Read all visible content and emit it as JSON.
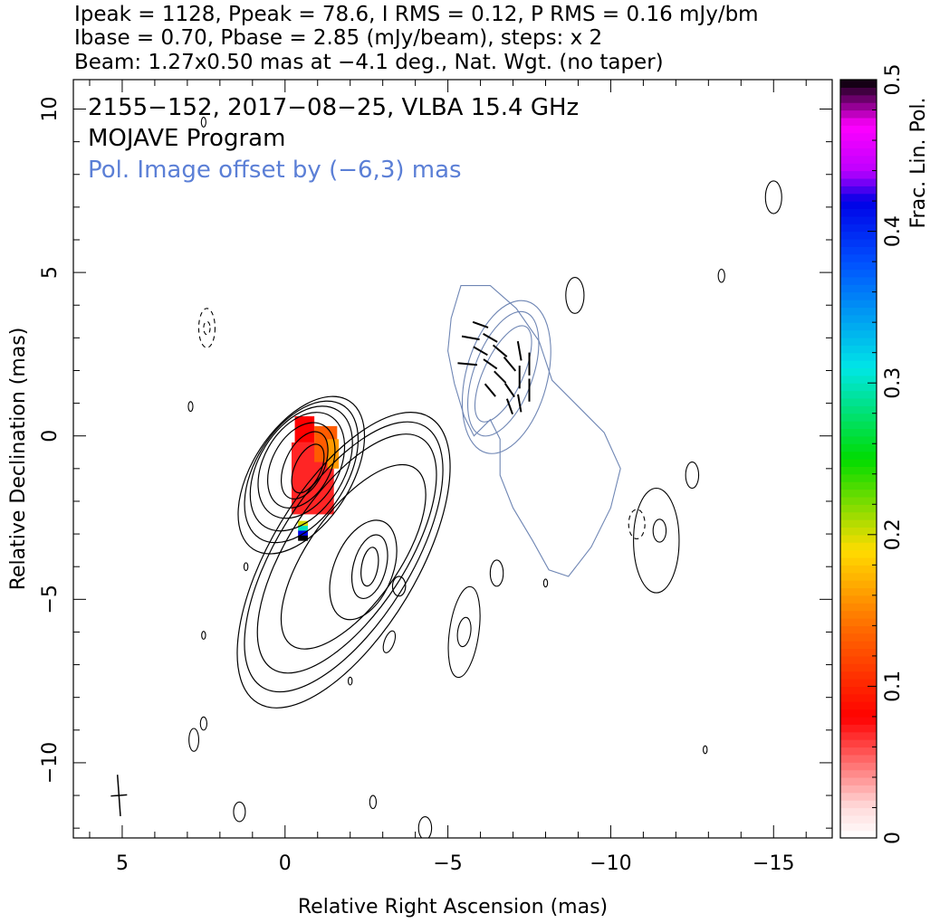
{
  "header": {
    "line1": "Ipeak = 1128, Ppeak = 78.6, I RMS = 0.12, P RMS = 0.16 mJy/bm",
    "line2": "Ibase = 0.70, Pbase = 2.85 (mJy/beam), steps: x 2",
    "line3": "Beam: 1.27x0.50 mas at −4.1 deg., Nat. Wgt. (no taper)"
  },
  "annotations": {
    "source": "2155−152, 2017−08−25, VLBA 15.4 GHz",
    "program": "MOJAVE Program",
    "offset": "Pol. Image offset by (−6,3) mas"
  },
  "colors": {
    "offset_text": "#5b7fd6",
    "total_contour": "#000000",
    "pol_contour": "#6f86b4"
  },
  "chart_data": {
    "type": "contour",
    "xlabel": "Relative Right Ascension (mas)",
    "ylabel": "Relative Declination (mas)",
    "xlim": [
      6.5,
      -16.8
    ],
    "ylim": [
      -12.3,
      10.9
    ],
    "x_ticks": [
      5,
      0,
      -5,
      -10,
      -15
    ],
    "x_tick_labels": [
      "5",
      "0",
      "−5",
      "−10",
      "−15"
    ],
    "y_ticks": [
      10,
      5,
      0,
      -5,
      -10
    ],
    "y_tick_labels": [
      "10",
      "5",
      "0",
      "−5",
      "−10"
    ],
    "beam": {
      "major_mas": 1.27,
      "minor_mas": 0.5,
      "pa_deg": -4.1,
      "center": [
        5.1,
        -11.0
      ]
    },
    "colorbar": {
      "label": "Frac. Lin. Pol.",
      "range": [
        0,
        0.5
      ],
      "ticks": [
        0,
        0.1,
        0.2,
        0.3,
        0.4,
        0.5
      ],
      "tick_labels": [
        "0",
        "0.1",
        "0.2",
        "0.3",
        "0.4",
        "0.5"
      ]
    },
    "core_contours": [
      {
        "cx": -0.7,
        "cy": -1.0,
        "rx": 0.4,
        "ry": 0.8,
        "rot": 25
      },
      {
        "cx": -0.6,
        "cy": -0.9,
        "rx": 0.6,
        "ry": 1.1,
        "rot": 25
      },
      {
        "cx": -0.5,
        "cy": -0.9,
        "rx": 0.9,
        "ry": 1.4,
        "rot": 28
      },
      {
        "cx": -0.5,
        "cy": -0.9,
        "rx": 1.15,
        "ry": 1.75,
        "rot": 30
      },
      {
        "cx": -0.5,
        "cy": -1.0,
        "rx": 1.3,
        "ry": 2.1,
        "rot": 32
      },
      {
        "cx": -0.5,
        "cy": -1.1,
        "rx": 1.4,
        "ry": 2.4,
        "rot": 32
      },
      {
        "cx": -0.5,
        "cy": -1.2,
        "rx": 1.5,
        "ry": 2.7,
        "rot": 33
      }
    ],
    "jet_contours": [
      {
        "cx": -2.6,
        "cy": -4.0,
        "rx": 0.25,
        "ry": 0.6,
        "rot": 10
      },
      {
        "cx": -2.6,
        "cy": -4.0,
        "rx": 0.5,
        "ry": 1.0,
        "rot": 15
      },
      {
        "cx": -2.4,
        "cy": -4.1,
        "rx": 0.9,
        "ry": 1.6,
        "rot": 22
      },
      {
        "cx": -2.1,
        "cy": -3.7,
        "rx": 1.4,
        "ry": 3.3,
        "rot": 35
      },
      {
        "cx": -1.9,
        "cy": -3.6,
        "rx": 1.8,
        "ry": 4.2,
        "rot": 33
      },
      {
        "cx": -1.8,
        "cy": -3.7,
        "rx": 2.05,
        "ry": 4.7,
        "rot": 32
      },
      {
        "cx": -1.8,
        "cy": -3.8,
        "rx": 2.25,
        "ry": 5.1,
        "rot": 31
      },
      {
        "cx": -3.5,
        "cy": -4.6,
        "rx": 0.2,
        "ry": 0.3,
        "rot": 0
      }
    ],
    "isolated_contours": [
      {
        "cx": -8.9,
        "cy": 4.3,
        "rx": 0.28,
        "ry": 0.55,
        "rot": 0,
        "dash": false
      },
      {
        "cx": -6.5,
        "cy": -4.2,
        "rx": 0.2,
        "ry": 0.4,
        "rot": 0,
        "dash": false
      },
      {
        "cx": -5.5,
        "cy": -6.0,
        "rx": 0.45,
        "ry": 1.4,
        "rot": 8,
        "dash": false
      },
      {
        "cx": -5.5,
        "cy": -6.0,
        "rx": 0.2,
        "ry": 0.45,
        "rot": 8,
        "dash": false
      },
      {
        "cx": -11.5,
        "cy": -2.9,
        "rx": 0.2,
        "ry": 0.35,
        "rot": 0,
        "dash": false
      },
      {
        "cx": -11.4,
        "cy": -3.2,
        "rx": 0.7,
        "ry": 1.6,
        "rot": 0,
        "dash": false
      },
      {
        "cx": -10.8,
        "cy": -2.7,
        "rx": 0.25,
        "ry": 0.45,
        "rot": 0,
        "dash": true
      },
      {
        "cx": -12.5,
        "cy": -1.2,
        "rx": 0.2,
        "ry": 0.4,
        "rot": 0,
        "dash": false
      },
      {
        "cx": -13.4,
        "cy": 4.9,
        "rx": 0.1,
        "ry": 0.2,
        "rot": 0,
        "dash": false
      },
      {
        "cx": 2.4,
        "cy": 3.3,
        "rx": 0.25,
        "ry": 0.6,
        "rot": 0,
        "dash": true
      },
      {
        "cx": 2.4,
        "cy": 3.3,
        "rx": 0.1,
        "ry": 0.2,
        "rot": 0,
        "dash": true
      },
      {
        "cx": 2.9,
        "cy": 0.9,
        "rx": 0.07,
        "ry": 0.15,
        "rot": 0,
        "dash": false
      },
      {
        "cx": 2.5,
        "cy": 9.6,
        "rx": 0.07,
        "ry": 0.15,
        "rot": 0,
        "dash": false
      },
      {
        "cx": 2.8,
        "cy": -9.3,
        "rx": 0.15,
        "ry": 0.35,
        "rot": 0,
        "dash": false
      },
      {
        "cx": 2.5,
        "cy": -8.8,
        "rx": 0.1,
        "ry": 0.2,
        "rot": 0,
        "dash": false
      },
      {
        "cx": 1.4,
        "cy": -11.5,
        "rx": 0.18,
        "ry": 0.3,
        "rot": 0,
        "dash": false
      },
      {
        "cx": 2.5,
        "cy": -6.1,
        "rx": 0.06,
        "ry": 0.12,
        "rot": 0,
        "dash": false
      },
      {
        "cx": 1.2,
        "cy": -4.0,
        "rx": 0.06,
        "ry": 0.12,
        "rot": 0,
        "dash": false
      },
      {
        "cx": -2.0,
        "cy": -7.5,
        "rx": 0.06,
        "ry": 0.12,
        "rot": 0,
        "dash": false
      },
      {
        "cx": -2.7,
        "cy": -11.2,
        "rx": 0.1,
        "ry": 0.2,
        "rot": 0,
        "dash": false
      },
      {
        "cx": -4.3,
        "cy": -12.0,
        "rx": 0.2,
        "ry": 0.35,
        "rot": 0,
        "dash": false
      },
      {
        "cx": -3.2,
        "cy": -6.3,
        "rx": 0.15,
        "ry": 0.35,
        "rot": 20,
        "dash": false
      },
      {
        "cx": -8.0,
        "cy": -4.5,
        "rx": 0.06,
        "ry": 0.12,
        "rot": 0,
        "dash": false
      },
      {
        "cx": -12.9,
        "cy": -9.6,
        "rx": 0.06,
        "ry": 0.12,
        "rot": 0,
        "dash": false
      },
      {
        "cx": -15.0,
        "cy": 7.3,
        "rx": 0.25,
        "ry": 0.5,
        "rot": 0,
        "dash": false
      }
    ],
    "pol_contours": [
      {
        "cx": -6.7,
        "cy": 1.9,
        "rx": 0.6,
        "ry": 1.6,
        "rot": 25
      },
      {
        "cx": -6.7,
        "cy": 1.9,
        "rx": 0.9,
        "ry": 2.0,
        "rot": 20
      },
      {
        "cx": -6.8,
        "cy": 1.8,
        "rx": 1.25,
        "ry": 2.4,
        "rot": 15
      }
    ],
    "pol_outer_contour": [
      [
        -5.4,
        4.6
      ],
      [
        -6.3,
        4.6
      ],
      [
        -7.1,
        3.9
      ],
      [
        -7.8,
        2.9
      ],
      [
        -8.2,
        1.7
      ],
      [
        -9.0,
        0.9
      ],
      [
        -9.8,
        0.1
      ],
      [
        -10.3,
        -1.0
      ],
      [
        -10.0,
        -2.2
      ],
      [
        -9.4,
        -3.4
      ],
      [
        -8.7,
        -4.3
      ],
      [
        -8.1,
        -4.1
      ],
      [
        -7.6,
        -3.2
      ],
      [
        -7.0,
        -2.2
      ],
      [
        -6.6,
        -1.2
      ],
      [
        -6.6,
        -0.1
      ],
      [
        -6.3,
        0.5
      ],
      [
        -5.8,
        0.0
      ],
      [
        -5.5,
        0.6
      ],
      [
        -5.2,
        1.6
      ],
      [
        -5.0,
        2.6
      ],
      [
        -5.1,
        3.6
      ],
      [
        -5.4,
        4.6
      ]
    ],
    "evpa_vectors": [
      {
        "x": -6.0,
        "y": 3.4,
        "angle_deg": -70,
        "len": 0.5
      },
      {
        "x": -6.3,
        "y": 3.0,
        "angle_deg": -60,
        "len": 0.5
      },
      {
        "x": -6.6,
        "y": 2.6,
        "angle_deg": -50,
        "len": 0.55
      },
      {
        "x": -6.9,
        "y": 2.2,
        "angle_deg": -40,
        "len": 0.55
      },
      {
        "x": -6.0,
        "y": 2.6,
        "angle_deg": -60,
        "len": 0.5
      },
      {
        "x": -6.3,
        "y": 2.2,
        "angle_deg": -55,
        "len": 0.5
      },
      {
        "x": -6.6,
        "y": 1.8,
        "angle_deg": -45,
        "len": 0.5
      },
      {
        "x": -6.9,
        "y": 1.4,
        "angle_deg": -35,
        "len": 0.5
      },
      {
        "x": -7.2,
        "y": 2.6,
        "angle_deg": -10,
        "len": 0.6
      },
      {
        "x": -7.5,
        "y": 2.2,
        "angle_deg": 0,
        "len": 0.7
      },
      {
        "x": -7.2,
        "y": 1.8,
        "angle_deg": 0,
        "len": 0.7
      },
      {
        "x": -7.5,
        "y": 1.4,
        "angle_deg": 0,
        "len": 0.7
      },
      {
        "x": -5.7,
        "y": 3.0,
        "angle_deg": -80,
        "len": 0.55
      },
      {
        "x": -5.6,
        "y": 2.2,
        "angle_deg": -85,
        "len": 0.6
      },
      {
        "x": -6.3,
        "y": 1.4,
        "angle_deg": -40,
        "len": 0.5
      },
      {
        "x": -6.9,
        "y": 0.9,
        "angle_deg": -20,
        "len": 0.5
      },
      {
        "x": -7.2,
        "y": 1.0,
        "angle_deg": -10,
        "len": 0.55
      }
    ],
    "fracpol_blocks": [
      {
        "x0": -0.2,
        "x1": -1.5,
        "y0": -0.2,
        "y1": -2.4,
        "value": 0.07
      },
      {
        "x0": -0.9,
        "x1": -1.6,
        "y0": 0.3,
        "y1": -0.8,
        "value": 0.13
      },
      {
        "x0": -1.3,
        "x1": -1.65,
        "y0": -0.1,
        "y1": -1.0,
        "value": 0.16
      },
      {
        "x0": -0.3,
        "x1": -0.9,
        "y0": 0.6,
        "y1": -0.2,
        "value": 0.08
      }
    ],
    "fracpol_streak": [
      {
        "y": -2.6,
        "value": 0.2
      },
      {
        "y": -2.75,
        "value": 0.3
      },
      {
        "y": -2.9,
        "value": 0.42
      },
      {
        "y": -3.05,
        "value": 0.5
      }
    ]
  }
}
